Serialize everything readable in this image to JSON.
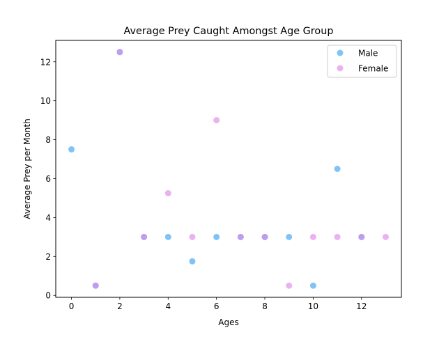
{
  "chart_data": {
    "type": "scatter",
    "title": "Average Prey Caught Amongst Age Group",
    "xlabel": "Ages",
    "ylabel": "Average Prey per Month",
    "xlim": [
      -0.65,
      13.65
    ],
    "ylim": [
      -0.1,
      13.1
    ],
    "xticks": [
      0,
      2,
      4,
      6,
      8,
      10,
      12
    ],
    "yticks": [
      0,
      2,
      4,
      6,
      8,
      10,
      12
    ],
    "grid": false,
    "legend_position": "top-right",
    "series": [
      {
        "name": "Male",
        "color": "#3fa3f2",
        "points": [
          {
            "x": 0,
            "y": 7.5
          },
          {
            "x": 1,
            "y": 0.5
          },
          {
            "x": 2,
            "y": 12.5
          },
          {
            "x": 3,
            "y": 3
          },
          {
            "x": 4,
            "y": 3
          },
          {
            "x": 5,
            "y": 1.75
          },
          {
            "x": 6,
            "y": 3
          },
          {
            "x": 7,
            "y": 3
          },
          {
            "x": 8,
            "y": 3
          },
          {
            "x": 9,
            "y": 3
          },
          {
            "x": 10,
            "y": 0.5
          },
          {
            "x": 11,
            "y": 6.5
          },
          {
            "x": 12,
            "y": 3
          }
        ]
      },
      {
        "name": "Female",
        "color": "#df88e8",
        "points": [
          {
            "x": 1,
            "y": 0.5
          },
          {
            "x": 2,
            "y": 12.5
          },
          {
            "x": 3,
            "y": 3
          },
          {
            "x": 4,
            "y": 5.25
          },
          {
            "x": 5,
            "y": 3
          },
          {
            "x": 6,
            "y": 9
          },
          {
            "x": 7,
            "y": 3
          },
          {
            "x": 8,
            "y": 3
          },
          {
            "x": 9,
            "y": 0.5
          },
          {
            "x": 10,
            "y": 3
          },
          {
            "x": 11,
            "y": 3
          },
          {
            "x": 12,
            "y": 3
          },
          {
            "x": 13,
            "y": 3
          }
        ]
      }
    ]
  }
}
